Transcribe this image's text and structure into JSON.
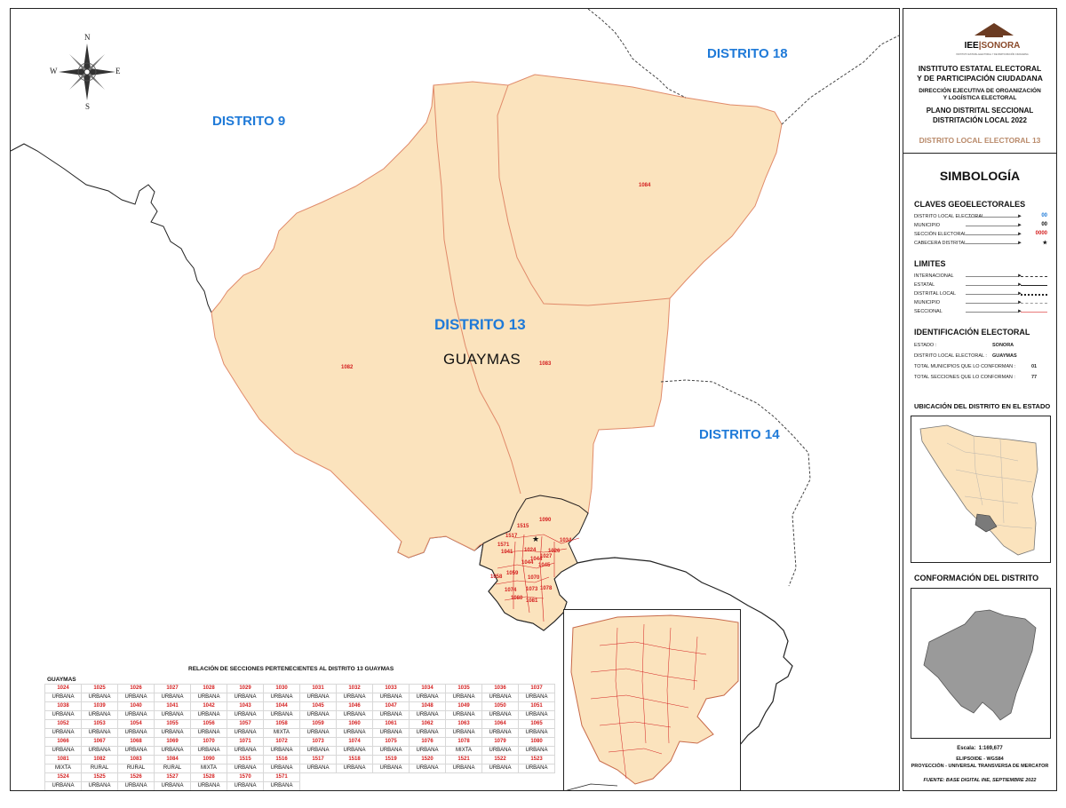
{
  "map": {
    "districts": {
      "d9": "DISTRITO 9",
      "d18": "DISTRITO 18",
      "d13": "DISTRITO 13",
      "d14": "DISTRITO 14"
    },
    "municipality": "GUAYMAS",
    "sections": {
      "s1082": "1082",
      "s1083": "1083",
      "s1084": "1084"
    },
    "city_sections": [
      "1515",
      "1090",
      "1517",
      "1571",
      "1024",
      "1034",
      "1041",
      "1027",
      "1026",
      "1044",
      "1044",
      "1045",
      "1059",
      "1058",
      "1070",
      "1074",
      "1073",
      "1080",
      "1081",
      "1078"
    ],
    "compass": {
      "n": "N",
      "s": "S",
      "e": "E",
      "w": "W"
    },
    "colors": {
      "district_fill": "#fbe3bd",
      "district_label": "#1f7ad8",
      "section_line": "#e87a7a",
      "section_label": "#d42020",
      "state_gray": "#9a9a9a"
    }
  },
  "table": {
    "title": "RELACIÓN DE SECCIONES PERTENECIENTES AL DISTRITO 13 GUAYMAS",
    "municipality": "GUAYMAS",
    "rows": [
      {
        "nums": [
          "1024",
          "1025",
          "1026",
          "1027",
          "1028",
          "1029",
          "1030",
          "1031",
          "1032",
          "1033",
          "1034",
          "1035",
          "1036",
          "1037"
        ],
        "types": [
          "URBANA",
          "URBANA",
          "URBANA",
          "URBANA",
          "URBANA",
          "URBANA",
          "URBANA",
          "URBANA",
          "URBANA",
          "URBANA",
          "URBANA",
          "URBANA",
          "URBANA",
          "URBANA"
        ]
      },
      {
        "nums": [
          "1038",
          "1039",
          "1040",
          "1041",
          "1042",
          "1043",
          "1044",
          "1045",
          "1046",
          "1047",
          "1048",
          "1049",
          "1050",
          "1051"
        ],
        "types": [
          "URBANA",
          "URBANA",
          "URBANA",
          "URBANA",
          "URBANA",
          "URBANA",
          "URBANA",
          "URBANA",
          "URBANA",
          "URBANA",
          "URBANA",
          "URBANA",
          "URBANA",
          "URBANA"
        ]
      },
      {
        "nums": [
          "1052",
          "1053",
          "1054",
          "1055",
          "1056",
          "1057",
          "1058",
          "1059",
          "1060",
          "1061",
          "1062",
          "1063",
          "1064",
          "1065"
        ],
        "types": [
          "URBANA",
          "URBANA",
          "URBANA",
          "URBANA",
          "URBANA",
          "URBANA",
          "MIXTA",
          "URBANA",
          "URBANA",
          "URBANA",
          "URBANA",
          "URBANA",
          "URBANA",
          "URBANA"
        ]
      },
      {
        "nums": [
          "1066",
          "1067",
          "1068",
          "1069",
          "1070",
          "1071",
          "1072",
          "1073",
          "1074",
          "1075",
          "1076",
          "1078",
          "1079",
          "1080"
        ],
        "types": [
          "URBANA",
          "URBANA",
          "URBANA",
          "URBANA",
          "URBANA",
          "URBANA",
          "URBANA",
          "URBANA",
          "URBANA",
          "URBANA",
          "URBANA",
          "MIXTA",
          "URBANA",
          "URBANA"
        ]
      },
      {
        "nums": [
          "1081",
          "1082",
          "1083",
          "1084",
          "1090",
          "1515",
          "1516",
          "1517",
          "1518",
          "1519",
          "1520",
          "1521",
          "1522",
          "1523"
        ],
        "types": [
          "MIXTA",
          "RURAL",
          "RURAL",
          "RURAL",
          "MIXTA",
          "URBANA",
          "URBANA",
          "URBANA",
          "URBANA",
          "URBANA",
          "URBANA",
          "URBANA",
          "URBANA",
          "URBANA"
        ]
      },
      {
        "nums": [
          "1524",
          "1525",
          "1526",
          "1527",
          "1528",
          "1570",
          "1571"
        ],
        "types": [
          "URBANA",
          "URBANA",
          "URBANA",
          "URBANA",
          "URBANA",
          "URBANA",
          "URBANA"
        ]
      }
    ]
  },
  "legend": {
    "logo": {
      "left": "IEE",
      "right": "SONORA",
      "sub": "INSTITUTO ESTATAL ELECTORAL Y DE PARTICIPACIÓN CIUDADANA"
    },
    "institute_l1": "INSTITUTO ESTATAL ELECTORAL",
    "institute_l2": "Y DE PARTICIPACIÓN CIUDADANA",
    "direction_l1": "DIRECCIÓN EJECUTIVA DE ORGANIZACIÓN",
    "direction_l2": "Y LOGÍSTICA ELECTORAL",
    "plan_l1": "PLANO DISTRITAL SECCIONAL",
    "plan_l2": "DISTRITACIÓN LOCAL 2022",
    "district_title": "DISTRITO LOCAL ELECTORAL 13",
    "simbologia": "SIMBOLOGÍA",
    "claves_title": "CLAVES GEOELECTORALES",
    "claves": [
      {
        "label": "DISTRITO LOCAL ELECTORAL",
        "symbol": "00",
        "color": "#1f7ad8"
      },
      {
        "label": "MUNICIPIO",
        "symbol": "00",
        "color": "#111111"
      },
      {
        "label": "SECCIÓN ELECTORAL",
        "symbol": "0000",
        "color": "#d42020"
      },
      {
        "label": "CABECERA DISTRITAL",
        "symbol": "★",
        "color": "#111111"
      }
    ],
    "limites_title": "LIMITES",
    "limites": [
      {
        "label": "INTERNACIONAL"
      },
      {
        "label": "ESTATAL"
      },
      {
        "label": "DISTRITAL LOCAL"
      },
      {
        "label": "MUNICIPIO"
      },
      {
        "label": "SECCIONAL"
      }
    ],
    "ident_title": "IDENTIFICACIÓN ELECTORAL",
    "ident": [
      {
        "label": "ESTADO :",
        "value": "SONORA"
      },
      {
        "label": "DISTRITO LOCAL ELECTORAL :",
        "value": "GUAYMAS"
      },
      {
        "label": "TOTAL MUNICIPIOS QUE LO CONFORMAN :",
        "value": "01"
      },
      {
        "label": "TOTAL SECCIONES QUE LO CONFORMAN :",
        "value": "77"
      }
    ],
    "ubicacion_title": "UBICACIÓN DEL DISTRITO EN EL ESTADO",
    "conformacion_title": "CONFORMACIÓN DEL DISTRITO",
    "escala_label": "Escala:",
    "escala_value": "1:169,677",
    "elipsoide": "ELIPSOIDE - WGS84",
    "proyeccion": "PROYECCIÓN - UNIVERSAL TRANSVERSA DE MERCATOR",
    "fuente": "FUENTE: BASE DIGITAL INE, SEPTIEMBRE 2022"
  }
}
